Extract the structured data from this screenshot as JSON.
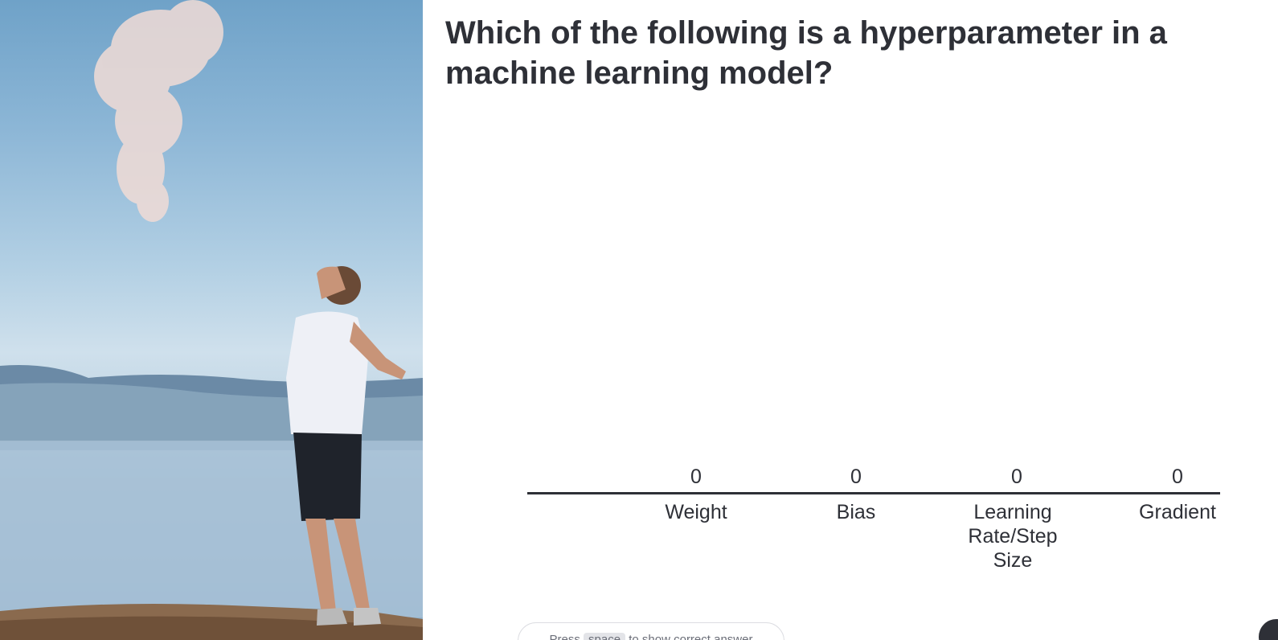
{
  "question": {
    "text": "Which of the following is a hyperparameter in a machine learning model?"
  },
  "results": {
    "options": [
      {
        "label": "Weight",
        "count": 0
      },
      {
        "label": "Bias",
        "count": 0
      },
      {
        "label": "Learning Rate/Step Size",
        "count": 0
      },
      {
        "label": "Gradient",
        "count": 0
      }
    ]
  },
  "hint": {
    "prefix": "Press",
    "key": "space",
    "suffix": "to show correct answer"
  },
  "colors": {
    "text": "#2e3037",
    "bar": "#5769e7",
    "background": "#ffffff"
  },
  "icons": {
    "corner": "presenter-menu-icon"
  }
}
